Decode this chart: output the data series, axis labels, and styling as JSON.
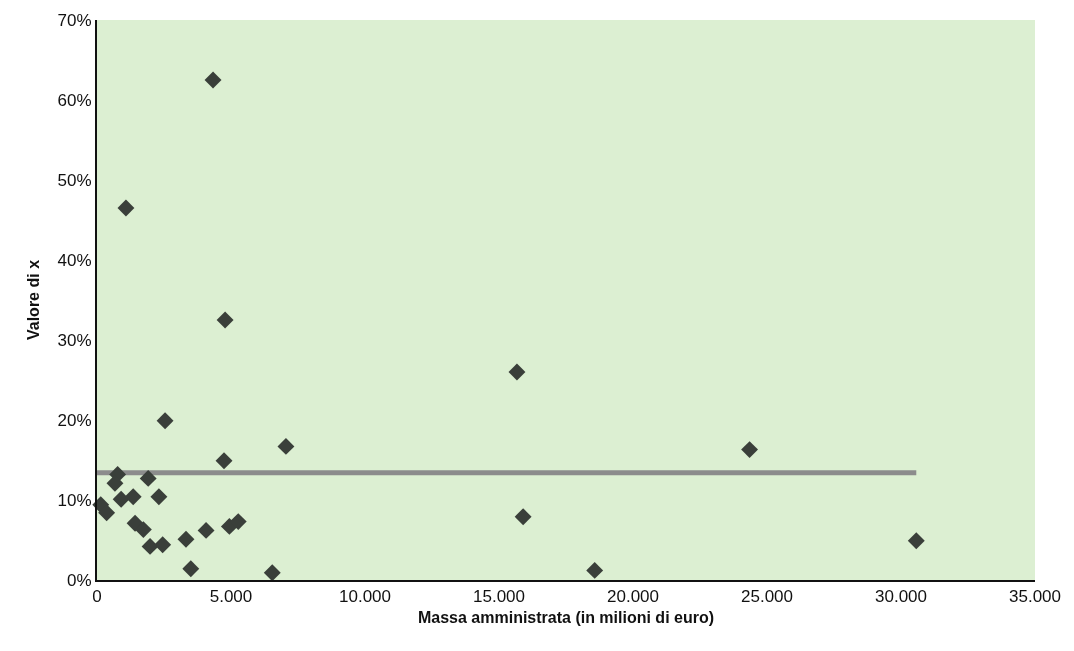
{
  "chart_data": {
    "type": "scatter",
    "xlabel": "Massa amministrata (in milioni di euro)",
    "ylabel": "Valore di x",
    "marker": "diamond",
    "grid": false,
    "legend": false,
    "xlim": [
      0,
      35000
    ],
    "ylim": [
      0,
      70
    ],
    "xticks": [
      0,
      {
        "value": 5000,
        "label": "5.000"
      },
      {
        "value": 10000,
        "label": "10.000"
      },
      {
        "value": 15000,
        "label": "15.000"
      },
      {
        "value": 20000,
        "label": "20.000"
      },
      {
        "value": 25000,
        "label": "25.000"
      },
      {
        "value": 30000,
        "label": "30.000"
      },
      {
        "value": 35000,
        "label": "35.000"
      }
    ],
    "yticks": [
      {
        "value": 0,
        "label": "0%"
      },
      {
        "value": 10,
        "label": "10%"
      },
      {
        "value": 20,
        "label": "20%"
      },
      {
        "value": 30,
        "label": "30%"
      },
      {
        "value": 40,
        "label": "40%"
      },
      {
        "value": 50,
        "label": "50%"
      },
      {
        "value": 60,
        "label": "60%"
      },
      {
        "value": 70,
        "label": "70%"
      }
    ],
    "series": [
      {
        "type": "line",
        "color": "#8c8c8c",
        "line_style": "solid",
        "marker": "none",
        "x": [
          0,
          30570
        ],
        "values": [
          13.4,
          13.4
        ]
      },
      {
        "color": "#3a3f3a",
        "x": [
          4330,
          1080,
          4780,
          15670,
          2540,
          24350,
          7050,
          4740,
          770,
          670,
          1910,
          900,
          1350,
          2310,
          140,
          360,
          1420,
          1730,
          1980,
          2450,
          3320,
          3500,
          4070,
          4940,
          5270,
          6540,
          15900,
          18570,
          30570
        ],
        "values": [
          62.5,
          46.5,
          32.5,
          26,
          19.9,
          16.3,
          16.7,
          14.9,
          13.2,
          12.1,
          12.7,
          10.1,
          10.4,
          10.4,
          9.4,
          8.4,
          7.1,
          6.3,
          4.2,
          4.4,
          5.1,
          1.4,
          6.2,
          6.7,
          7.3,
          0.9,
          7.9,
          1.2,
          4.9
        ]
      }
    ]
  }
}
